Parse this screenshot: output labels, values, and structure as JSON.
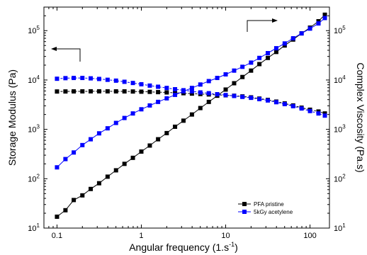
{
  "chart_data": {
    "type": "line",
    "x_scale": "log",
    "y_scale": "log",
    "xlim": [
      0.07,
      170
    ],
    "ylim": [
      10,
      300000
    ],
    "xlabel": "Angular frequency (1.s",
    "xlabel_sup": "-1",
    "xlabel_end": ")",
    "ylabel_left": "Storage Modulus (Pa)",
    "ylabel_right": "Complex Viscosity (Pa.s)",
    "x_ticks": [
      {
        "value": 0.1,
        "label": "0.1"
      },
      {
        "value": 1,
        "label": "1"
      },
      {
        "value": 10,
        "label": "10"
      },
      {
        "value": 100,
        "label": "100"
      }
    ],
    "y_ticks": [
      {
        "value": 10,
        "base": "10",
        "exp": "1"
      },
      {
        "value": 100,
        "base": "10",
        "exp": "2"
      },
      {
        "value": 1000,
        "base": "10",
        "exp": "3"
      },
      {
        "value": 10000,
        "base": "10",
        "exp": "4"
      },
      {
        "value": 100000,
        "base": "10",
        "exp": "5"
      }
    ],
    "legend_position": "bottom-right",
    "series": [
      {
        "name": "PFA pristine",
        "color": "#000000",
        "storage_modulus": [
          [
            0.1,
            17
          ],
          [
            0.126,
            23
          ],
          [
            0.158,
            37
          ],
          [
            0.2,
            46
          ],
          [
            0.251,
            62
          ],
          [
            0.316,
            81
          ],
          [
            0.398,
            110
          ],
          [
            0.501,
            148
          ],
          [
            0.631,
            200
          ],
          [
            0.794,
            265
          ],
          [
            1.0,
            355
          ],
          [
            1.26,
            470
          ],
          [
            1.58,
            630
          ],
          [
            2.0,
            840
          ],
          [
            2.51,
            1130
          ],
          [
            3.16,
            1500
          ],
          [
            3.98,
            2000
          ],
          [
            5.01,
            2700
          ],
          [
            6.31,
            3600
          ],
          [
            7.94,
            4800
          ],
          [
            10.0,
            6400
          ],
          [
            12.6,
            8600
          ],
          [
            15.8,
            11500
          ],
          [
            20.0,
            15500
          ],
          [
            25.1,
            21000
          ],
          [
            31.6,
            28000
          ],
          [
            39.8,
            37000
          ],
          [
            50.1,
            50000
          ],
          [
            63.1,
            66000
          ],
          [
            79.4,
            88000
          ],
          [
            100,
            115000
          ],
          [
            126,
            155000
          ],
          [
            150,
            210000
          ]
        ],
        "complex_viscosity": [
          [
            0.1,
            5850
          ],
          [
            0.126,
            5860
          ],
          [
            0.158,
            5880
          ],
          [
            0.2,
            5890
          ],
          [
            0.251,
            5900
          ],
          [
            0.316,
            5900
          ],
          [
            0.398,
            5900
          ],
          [
            0.501,
            5890
          ],
          [
            0.631,
            5880
          ],
          [
            0.794,
            5850
          ],
          [
            1.0,
            5800
          ],
          [
            1.26,
            5750
          ],
          [
            1.58,
            5680
          ],
          [
            2.0,
            5600
          ],
          [
            2.51,
            5500
          ],
          [
            3.16,
            5400
          ],
          [
            3.98,
            5300
          ],
          [
            5.01,
            5200
          ],
          [
            6.31,
            5100
          ],
          [
            7.94,
            5000
          ],
          [
            10.0,
            4900
          ],
          [
            12.6,
            4800
          ],
          [
            15.8,
            4650
          ],
          [
            20.0,
            4450
          ],
          [
            25.1,
            4200
          ],
          [
            31.6,
            3950
          ],
          [
            39.8,
            3650
          ],
          [
            50.1,
            3350
          ],
          [
            63.1,
            3050
          ],
          [
            79.4,
            2750
          ],
          [
            100,
            2500
          ],
          [
            126,
            2300
          ],
          [
            150,
            2100
          ]
        ]
      },
      {
        "name": "5kGy acetylene",
        "color": "#0000ff",
        "storage_modulus": [
          [
            0.1,
            170
          ],
          [
            0.126,
            250
          ],
          [
            0.158,
            340
          ],
          [
            0.2,
            480
          ],
          [
            0.251,
            630
          ],
          [
            0.316,
            830
          ],
          [
            0.398,
            1050
          ],
          [
            0.501,
            1350
          ],
          [
            0.631,
            1700
          ],
          [
            0.794,
            2100
          ],
          [
            1.0,
            2550
          ],
          [
            1.26,
            3050
          ],
          [
            1.58,
            3600
          ],
          [
            2.0,
            4250
          ],
          [
            2.51,
            5000
          ],
          [
            3.16,
            5900
          ],
          [
            3.98,
            6900
          ],
          [
            5.01,
            8100
          ],
          [
            6.31,
            9500
          ],
          [
            7.94,
            11000
          ],
          [
            10.0,
            13000
          ],
          [
            12.6,
            15500
          ],
          [
            15.8,
            18500
          ],
          [
            20.0,
            22500
          ],
          [
            25.1,
            28000
          ],
          [
            31.6,
            35000
          ],
          [
            39.8,
            44000
          ],
          [
            50.1,
            55000
          ],
          [
            63.1,
            70000
          ],
          [
            79.4,
            88000
          ],
          [
            100,
            110000
          ],
          [
            126,
            140000
          ],
          [
            150,
            180000
          ]
        ],
        "complex_viscosity": [
          [
            0.1,
            10600
          ],
          [
            0.126,
            10900
          ],
          [
            0.158,
            11000
          ],
          [
            0.2,
            11000
          ],
          [
            0.251,
            10800
          ],
          [
            0.316,
            10500
          ],
          [
            0.398,
            10100
          ],
          [
            0.501,
            9700
          ],
          [
            0.631,
            9200
          ],
          [
            0.794,
            8700
          ],
          [
            1.0,
            8200
          ],
          [
            1.26,
            7700
          ],
          [
            1.58,
            7300
          ],
          [
            2.0,
            6900
          ],
          [
            2.51,
            6500
          ],
          [
            3.16,
            6200
          ],
          [
            3.98,
            5900
          ],
          [
            5.01,
            5600
          ],
          [
            6.31,
            5400
          ],
          [
            7.94,
            5150
          ],
          [
            10.0,
            4950
          ],
          [
            12.6,
            4750
          ],
          [
            15.8,
            4550
          ],
          [
            20.0,
            4350
          ],
          [
            25.1,
            4100
          ],
          [
            31.6,
            3850
          ],
          [
            39.8,
            3550
          ],
          [
            50.1,
            3250
          ],
          [
            63.1,
            2950
          ],
          [
            79.4,
            2650
          ],
          [
            100,
            2350
          ],
          [
            126,
            2100
          ],
          [
            150,
            1900
          ]
        ]
      }
    ]
  }
}
